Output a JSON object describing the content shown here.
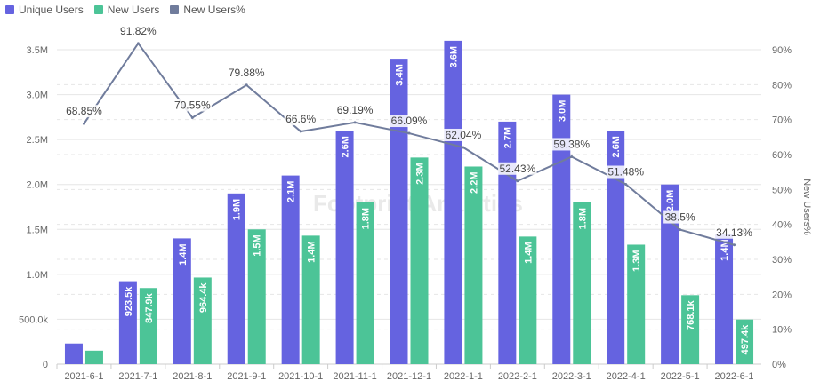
{
  "colors": {
    "unique_users": "#6563e0",
    "new_users": "#4cc497",
    "new_users_pct": "#707c9c",
    "grid": "#e6e6e6",
    "axis_text": "#666666"
  },
  "chart_data": {
    "type": "bar",
    "categories": [
      "2021-6-1",
      "2021-7-1",
      "2021-8-1",
      "2021-9-1",
      "2021-10-1",
      "2021-11-1",
      "2021-12-1",
      "2022-1-1",
      "2022-2-1",
      "2022-3-1",
      "2022-4-1",
      "2022-5-1",
      "2022-6-1"
    ],
    "series": [
      {
        "name": "Unique Users",
        "type": "bar",
        "axis": "left",
        "values": [
          230000,
          923500,
          1400000,
          1900000,
          2100000,
          2600000,
          3400000,
          3600000,
          2700000,
          3000000,
          2600000,
          2000000,
          1450000
        ],
        "labels": [
          "",
          "923.5k",
          "1.4M",
          "1.9M",
          "2.1M",
          "2.6M",
          "3.4M",
          "3.6M",
          "2.7M",
          "3.0M",
          "2.6M",
          "2.0M",
          "1.4M"
        ]
      },
      {
        "name": "New Users",
        "type": "bar",
        "axis": "left",
        "values": [
          150000,
          847900,
          964400,
          1500000,
          1430000,
          1800000,
          2300000,
          2200000,
          1420000,
          1800000,
          1330000,
          768100,
          497400
        ],
        "labels": [
          "",
          "847.9k",
          "964.4k",
          "1.5M",
          "1.4M",
          "1.8M",
          "2.3M",
          "2.2M",
          "1.4M",
          "1.8M",
          "1.3M",
          "768.1k",
          "497.4k"
        ]
      },
      {
        "name": "New Users%",
        "type": "line",
        "axis": "right",
        "values": [
          68.85,
          91.82,
          70.55,
          79.88,
          66.6,
          69.19,
          66.09,
          62.04,
          52.43,
          59.38,
          51.48,
          38.5,
          34.13
        ],
        "labels": [
          "68.85%",
          "91.82%",
          "70.55%",
          "79.88%",
          "66.6%",
          "69.19%",
          "66.09%",
          "62.04%",
          "52.43%",
          "59.38%",
          "51.48%",
          "38.5%",
          "34.13%"
        ]
      }
    ],
    "y_left": {
      "ylim": [
        0,
        3500000
      ],
      "ticks": [
        0,
        500000,
        1000000,
        1500000,
        2000000,
        2500000,
        3000000,
        3500000
      ],
      "tick_labels": [
        "0",
        "500.0k",
        "1.0M",
        "1.5M",
        "2.0M",
        "2.5M",
        "3.0M",
        "3.5M"
      ]
    },
    "y_right": {
      "label": "New Users%",
      "ylim": [
        0,
        90
      ],
      "ticks": [
        0,
        10,
        20,
        30,
        40,
        50,
        60,
        70,
        80,
        90
      ],
      "tick_labels": [
        "0%",
        "10%",
        "20%",
        "30%",
        "40%",
        "50%",
        "60%",
        "70%",
        "80%",
        "90%"
      ]
    },
    "grid": true,
    "legend": "top-left",
    "watermark": "Footprint Analytics"
  }
}
